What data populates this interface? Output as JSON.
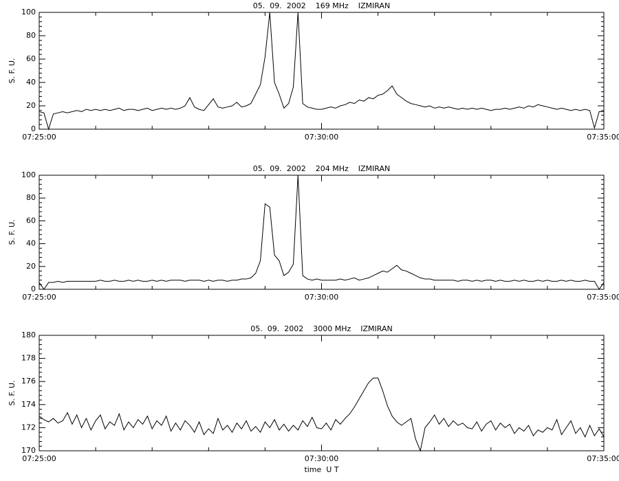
{
  "chart_data": [
    {
      "type": "line",
      "title": "05.  09.  2002    169 MHz    IZMIRAN",
      "ylabel": "S. F. U.",
      "color": "#000000",
      "xlim": [
        "07:25:00",
        "07:35:00"
      ],
      "xticks": [
        "07:25:00",
        "07:30:00",
        "07:35:00"
      ],
      "ylim": [
        0,
        100
      ],
      "yticks": [
        0,
        20,
        40,
        60,
        80,
        100
      ],
      "x": [
        "07:25:00",
        "07:25:05",
        "07:25:10",
        "07:25:15",
        "07:25:20",
        "07:25:25",
        "07:25:30",
        "07:25:35",
        "07:25:40",
        "07:25:45",
        "07:25:50",
        "07:25:55",
        "07:26:00",
        "07:26:05",
        "07:26:10",
        "07:26:15",
        "07:26:20",
        "07:26:25",
        "07:26:30",
        "07:26:35",
        "07:26:40",
        "07:26:45",
        "07:26:50",
        "07:26:55",
        "07:27:00",
        "07:27:05",
        "07:27:10",
        "07:27:15",
        "07:27:20",
        "07:27:25",
        "07:27:30",
        "07:27:35",
        "07:27:40",
        "07:27:45",
        "07:27:50",
        "07:27:55",
        "07:28:00",
        "07:28:05",
        "07:28:10",
        "07:28:15",
        "07:28:20",
        "07:28:25",
        "07:28:30",
        "07:28:35",
        "07:28:40",
        "07:28:45",
        "07:28:50",
        "07:28:55",
        "07:29:00",
        "07:29:05",
        "07:29:10",
        "07:29:15",
        "07:29:20",
        "07:29:25",
        "07:29:30",
        "07:29:35",
        "07:29:40",
        "07:29:45",
        "07:29:50",
        "07:29:55",
        "07:30:00",
        "07:30:05",
        "07:30:10",
        "07:30:15",
        "07:30:20",
        "07:30:25",
        "07:30:30",
        "07:30:35",
        "07:30:40",
        "07:30:45",
        "07:30:50",
        "07:30:55",
        "07:31:00",
        "07:31:05",
        "07:31:10",
        "07:31:15",
        "07:31:20",
        "07:31:25",
        "07:31:30",
        "07:31:35",
        "07:31:40",
        "07:31:45",
        "07:31:50",
        "07:31:55",
        "07:32:00",
        "07:32:05",
        "07:32:10",
        "07:32:15",
        "07:32:20",
        "07:32:25",
        "07:32:30",
        "07:32:35",
        "07:32:40",
        "07:32:45",
        "07:32:50",
        "07:32:55",
        "07:33:00",
        "07:33:05",
        "07:33:10",
        "07:33:15",
        "07:33:20",
        "07:33:25",
        "07:33:30",
        "07:33:35",
        "07:33:40",
        "07:33:45",
        "07:33:50",
        "07:33:55",
        "07:34:00",
        "07:34:05",
        "07:34:10",
        "07:34:15",
        "07:34:20",
        "07:34:25",
        "07:34:30",
        "07:34:35",
        "07:34:40",
        "07:34:45",
        "07:34:50",
        "07:34:55",
        "07:35:00"
      ],
      "values": [
        15,
        14,
        0,
        13,
        14,
        15,
        14,
        15,
        16,
        15,
        17,
        16,
        17,
        16,
        17,
        16,
        17,
        18,
        16,
        17,
        17,
        16,
        17,
        18,
        16,
        17,
        18,
        17,
        18,
        17,
        18,
        20,
        27,
        19,
        17,
        16,
        21,
        26,
        19,
        18,
        19,
        20,
        23,
        19,
        20,
        22,
        30,
        38,
        62,
        100,
        40,
        30,
        18,
        22,
        36,
        100,
        22,
        19,
        18,
        17,
        17,
        18,
        19,
        18,
        20,
        21,
        23,
        22,
        25,
        24,
        27,
        26,
        29,
        30,
        33,
        37,
        30,
        27,
        24,
        22,
        21,
        20,
        19,
        20,
        18,
        19,
        18,
        19,
        18,
        17,
        18,
        17,
        18,
        17,
        18,
        17,
        16,
        17,
        17,
        18,
        17,
        18,
        19,
        18,
        20,
        19,
        21,
        20,
        19,
        18,
        17,
        18,
        17,
        16,
        17,
        16,
        17,
        16,
        1,
        15,
        15
      ]
    },
    {
      "type": "line",
      "title": "05.  09.  2002    204 MHz    IZMIRAN",
      "ylabel": "S. F. U.",
      "color": "#000000",
      "xlim": [
        "07:25:00",
        "07:35:00"
      ],
      "xticks": [
        "07:25:00",
        "07:30:00",
        "07:35:00"
      ],
      "ylim": [
        0,
        100
      ],
      "yticks": [
        0,
        20,
        40,
        60,
        80,
        100
      ],
      "x": [
        "07:25:00",
        "07:25:05",
        "07:25:10",
        "07:25:15",
        "07:25:20",
        "07:25:25",
        "07:25:30",
        "07:25:35",
        "07:25:40",
        "07:25:45",
        "07:25:50",
        "07:25:55",
        "07:26:00",
        "07:26:05",
        "07:26:10",
        "07:26:15",
        "07:26:20",
        "07:26:25",
        "07:26:30",
        "07:26:35",
        "07:26:40",
        "07:26:45",
        "07:26:50",
        "07:26:55",
        "07:27:00",
        "07:27:05",
        "07:27:10",
        "07:27:15",
        "07:27:20",
        "07:27:25",
        "07:27:30",
        "07:27:35",
        "07:27:40",
        "07:27:45",
        "07:27:50",
        "07:27:55",
        "07:28:00",
        "07:28:05",
        "07:28:10",
        "07:28:15",
        "07:28:20",
        "07:28:25",
        "07:28:30",
        "07:28:35",
        "07:28:40",
        "07:28:45",
        "07:28:50",
        "07:28:55",
        "07:29:00",
        "07:29:05",
        "07:29:10",
        "07:29:15",
        "07:29:20",
        "07:29:25",
        "07:29:30",
        "07:29:35",
        "07:29:40",
        "07:29:45",
        "07:29:50",
        "07:29:55",
        "07:30:00",
        "07:30:05",
        "07:30:10",
        "07:30:15",
        "07:30:20",
        "07:30:25",
        "07:30:30",
        "07:30:35",
        "07:30:40",
        "07:30:45",
        "07:30:50",
        "07:30:55",
        "07:31:00",
        "07:31:05",
        "07:31:10",
        "07:31:15",
        "07:31:20",
        "07:31:25",
        "07:31:30",
        "07:31:35",
        "07:31:40",
        "07:31:45",
        "07:31:50",
        "07:31:55",
        "07:32:00",
        "07:32:05",
        "07:32:10",
        "07:32:15",
        "07:32:20",
        "07:32:25",
        "07:32:30",
        "07:32:35",
        "07:32:40",
        "07:32:45",
        "07:32:50",
        "07:32:55",
        "07:33:00",
        "07:33:05",
        "07:33:10",
        "07:33:15",
        "07:33:20",
        "07:33:25",
        "07:33:30",
        "07:33:35",
        "07:33:40",
        "07:33:45",
        "07:33:50",
        "07:33:55",
        "07:34:00",
        "07:34:05",
        "07:34:10",
        "07:34:15",
        "07:34:20",
        "07:34:25",
        "07:34:30",
        "07:34:35",
        "07:34:40",
        "07:34:45",
        "07:34:50",
        "07:34:55",
        "07:35:00"
      ],
      "values": [
        6,
        0,
        6,
        6,
        7,
        6,
        7,
        7,
        7,
        7,
        7,
        7,
        7,
        8,
        7,
        7,
        8,
        7,
        7,
        8,
        7,
        8,
        7,
        7,
        8,
        7,
        8,
        7,
        8,
        8,
        8,
        7,
        8,
        8,
        8,
        7,
        8,
        7,
        8,
        8,
        7,
        8,
        8,
        9,
        9,
        10,
        14,
        25,
        75,
        72,
        30,
        25,
        12,
        15,
        22,
        100,
        12,
        9,
        8,
        9,
        8,
        8,
        8,
        8,
        9,
        8,
        9,
        10,
        8,
        9,
        10,
        12,
        14,
        16,
        15,
        18,
        21,
        17,
        16,
        14,
        12,
        10,
        9,
        9,
        8,
        8,
        8,
        8,
        8,
        7,
        8,
        8,
        7,
        8,
        7,
        8,
        8,
        7,
        8,
        7,
        7,
        8,
        7,
        8,
        7,
        7,
        8,
        7,
        8,
        7,
        7,
        8,
        7,
        8,
        7,
        7,
        8,
        7,
        7,
        0,
        6
      ]
    },
    {
      "type": "line",
      "title": "05.  09.  2002    3000 MHz    IZMIRAN",
      "ylabel": "S. F. U.",
      "xlabel": "time  U T",
      "color": "#000000",
      "xlim": [
        "07:25:00",
        "07:35:00"
      ],
      "xticks": [
        "07:25:00",
        "07:30:00",
        "07:35:00"
      ],
      "ylim": [
        170,
        180
      ],
      "yticks": [
        170,
        172,
        174,
        176,
        178,
        180
      ],
      "x": [
        "07:25:00",
        "07:25:05",
        "07:25:10",
        "07:25:15",
        "07:25:20",
        "07:25:25",
        "07:25:30",
        "07:25:35",
        "07:25:40",
        "07:25:45",
        "07:25:50",
        "07:25:55",
        "07:26:00",
        "07:26:05",
        "07:26:10",
        "07:26:15",
        "07:26:20",
        "07:26:25",
        "07:26:30",
        "07:26:35",
        "07:26:40",
        "07:26:45",
        "07:26:50",
        "07:26:55",
        "07:27:00",
        "07:27:05",
        "07:27:10",
        "07:27:15",
        "07:27:20",
        "07:27:25",
        "07:27:30",
        "07:27:35",
        "07:27:40",
        "07:27:45",
        "07:27:50",
        "07:27:55",
        "07:28:00",
        "07:28:05",
        "07:28:10",
        "07:28:15",
        "07:28:20",
        "07:28:25",
        "07:28:30",
        "07:28:35",
        "07:28:40",
        "07:28:45",
        "07:28:50",
        "07:28:55",
        "07:29:00",
        "07:29:05",
        "07:29:10",
        "07:29:15",
        "07:29:20",
        "07:29:25",
        "07:29:30",
        "07:29:35",
        "07:29:40",
        "07:29:45",
        "07:29:50",
        "07:29:55",
        "07:30:00",
        "07:30:05",
        "07:30:10",
        "07:30:15",
        "07:30:20",
        "07:30:25",
        "07:30:30",
        "07:30:35",
        "07:30:40",
        "07:30:45",
        "07:30:50",
        "07:30:55",
        "07:31:00",
        "07:31:05",
        "07:31:10",
        "07:31:15",
        "07:31:20",
        "07:31:25",
        "07:31:30",
        "07:31:35",
        "07:31:40",
        "07:31:45",
        "07:31:50",
        "07:31:55",
        "07:32:00",
        "07:32:05",
        "07:32:10",
        "07:32:15",
        "07:32:20",
        "07:32:25",
        "07:32:30",
        "07:32:35",
        "07:32:40",
        "07:32:45",
        "07:32:50",
        "07:32:55",
        "07:33:00",
        "07:33:05",
        "07:33:10",
        "07:33:15",
        "07:33:20",
        "07:33:25",
        "07:33:30",
        "07:33:35",
        "07:33:40",
        "07:33:45",
        "07:33:50",
        "07:33:55",
        "07:34:00",
        "07:34:05",
        "07:34:10",
        "07:34:15",
        "07:34:20",
        "07:34:25",
        "07:34:30",
        "07:34:35",
        "07:34:40",
        "07:34:45",
        "07:34:50",
        "07:34:55",
        "07:35:00"
      ],
      "values": [
        173,
        172.7,
        172.5,
        172.8,
        172.4,
        172.6,
        173.3,
        172.3,
        173.1,
        172,
        172.8,
        171.8,
        172.6,
        173.1,
        171.9,
        172.5,
        172.2,
        173.2,
        171.8,
        172.5,
        172,
        172.7,
        172.3,
        173,
        171.9,
        172.6,
        172.2,
        173,
        171.7,
        172.4,
        171.8,
        172.6,
        172.2,
        171.6,
        172.5,
        171.4,
        171.9,
        171.5,
        172.8,
        171.8,
        172.2,
        171.6,
        172.4,
        171.9,
        172.6,
        171.7,
        172.1,
        171.6,
        172.5,
        172,
        172.7,
        171.8,
        172.3,
        171.7,
        172.2,
        171.8,
        172.6,
        172.1,
        172.9,
        172,
        171.9,
        172.4,
        171.8,
        172.7,
        172.3,
        172.8,
        173.2,
        173.8,
        174.5,
        175.2,
        175.9,
        176.3,
        176.3,
        175.2,
        173.9,
        173,
        172.5,
        172.2,
        172.5,
        172.8,
        171,
        170,
        172,
        172.5,
        173.1,
        172.3,
        172.8,
        172.1,
        172.6,
        172.2,
        172.4,
        172,
        171.9,
        172.5,
        171.7,
        172.3,
        172.6,
        171.8,
        172.4,
        172,
        172.3,
        171.5,
        172,
        171.7,
        172.2,
        171.3,
        171.8,
        171.6,
        172,
        171.8,
        172.7,
        171.4,
        172,
        172.6,
        171.5,
        172,
        171.2,
        172.2,
        171.3,
        171.9,
        171.2
      ]
    }
  ]
}
